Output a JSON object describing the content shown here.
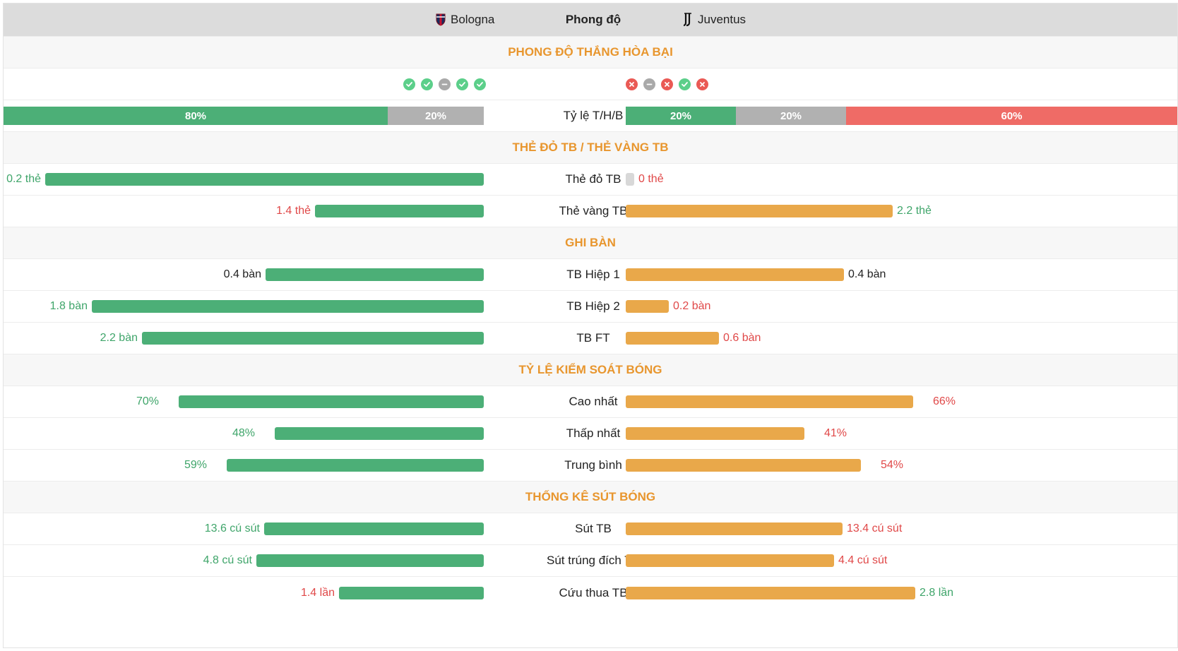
{
  "header": {
    "home_team": "Bologna",
    "middle": "Phong độ",
    "away_team": "Juventus",
    "home_logo_icon": "bologna-crest-icon",
    "away_logo_icon": "juventus-logo-icon"
  },
  "sections": {
    "form": "PHONG ĐỘ THẮNG HÒA BẠI",
    "cards": "THẺ ĐỎ TB / THẺ VÀNG TB",
    "goals": "GHI BÀN",
    "possession": "TỶ LỆ KIỂM SOÁT BÓNG",
    "shots": "THỐNG KÊ SÚT BÓNG"
  },
  "form": {
    "home": [
      "win",
      "win",
      "draw",
      "win",
      "win"
    ],
    "away": [
      "loss",
      "draw",
      "loss",
      "win",
      "loss"
    ]
  },
  "ratio": {
    "label": "Tỷ lệ T/H/B",
    "home": {
      "win": "80%",
      "draw": "20%",
      "win_fraction": 0.8,
      "draw_fraction": 0.2
    },
    "away": {
      "win": "20%",
      "draw": "20%",
      "loss": "60%",
      "win_fraction": 0.2,
      "draw_fraction": 0.2,
      "loss_fraction": 0.6
    }
  },
  "stats": {
    "red_card": {
      "label": "Thẻ đỏ TB",
      "home": "0.2 thẻ",
      "away": "0 thẻ",
      "home_frac": 1.0,
      "away_frac": 0.0
    },
    "yellow_card": {
      "label": "Thẻ vàng TB",
      "home": "1.4 thẻ",
      "away": "2.2 thẻ",
      "home_frac": 0.385,
      "away_frac": 0.608
    },
    "half1": {
      "label": "TB Hiệp 1",
      "home": "0.4 bàn",
      "away": "0.4 bàn",
      "home_frac": 0.497,
      "away_frac": 0.497
    },
    "half2": {
      "label": "TB Hiệp 2",
      "home": "1.8 bàn",
      "away": "0.2 bàn",
      "home_frac": 0.894,
      "away_frac": 0.099
    },
    "ft": {
      "label": "TB FT",
      "home": "2.2 bàn",
      "away": "0.6 bàn",
      "home_frac": 0.78,
      "away_frac": 0.213
    },
    "poss_max": {
      "label": "Cao nhất",
      "home": "70%",
      "away": "66%",
      "home_frac": 0.695,
      "away_frac": 0.655
    },
    "poss_min": {
      "label": "Thấp nhất",
      "home": "48%",
      "away": "41%",
      "home_frac": 0.477,
      "away_frac": 0.407
    },
    "poss_avg": {
      "label": "Trung bình",
      "home": "59%",
      "away": "54%",
      "home_frac": 0.586,
      "away_frac": 0.536
    },
    "shots": {
      "label": "Sút TB",
      "home": "13.6 cú sút",
      "away": "13.4 cú sút",
      "home_frac": 0.5,
      "away_frac": 0.494
    },
    "shots_on": {
      "label": "Sút trúng đích TB",
      "home": "4.8 cú sút",
      "away": "4.4 cú sút",
      "home_frac": 0.518,
      "away_frac": 0.475
    },
    "saves": {
      "label": "Cứu thua TB",
      "home": "1.4 lần",
      "away": "2.8 lần",
      "home_frac": 0.33,
      "away_frac": 0.66
    }
  },
  "colors": {
    "home_bar": "#4caf77",
    "away_bar": "#e9a84a",
    "section_title": "#e8962e",
    "good_value": "#3fa56a",
    "bad_value": "#e04848"
  }
}
